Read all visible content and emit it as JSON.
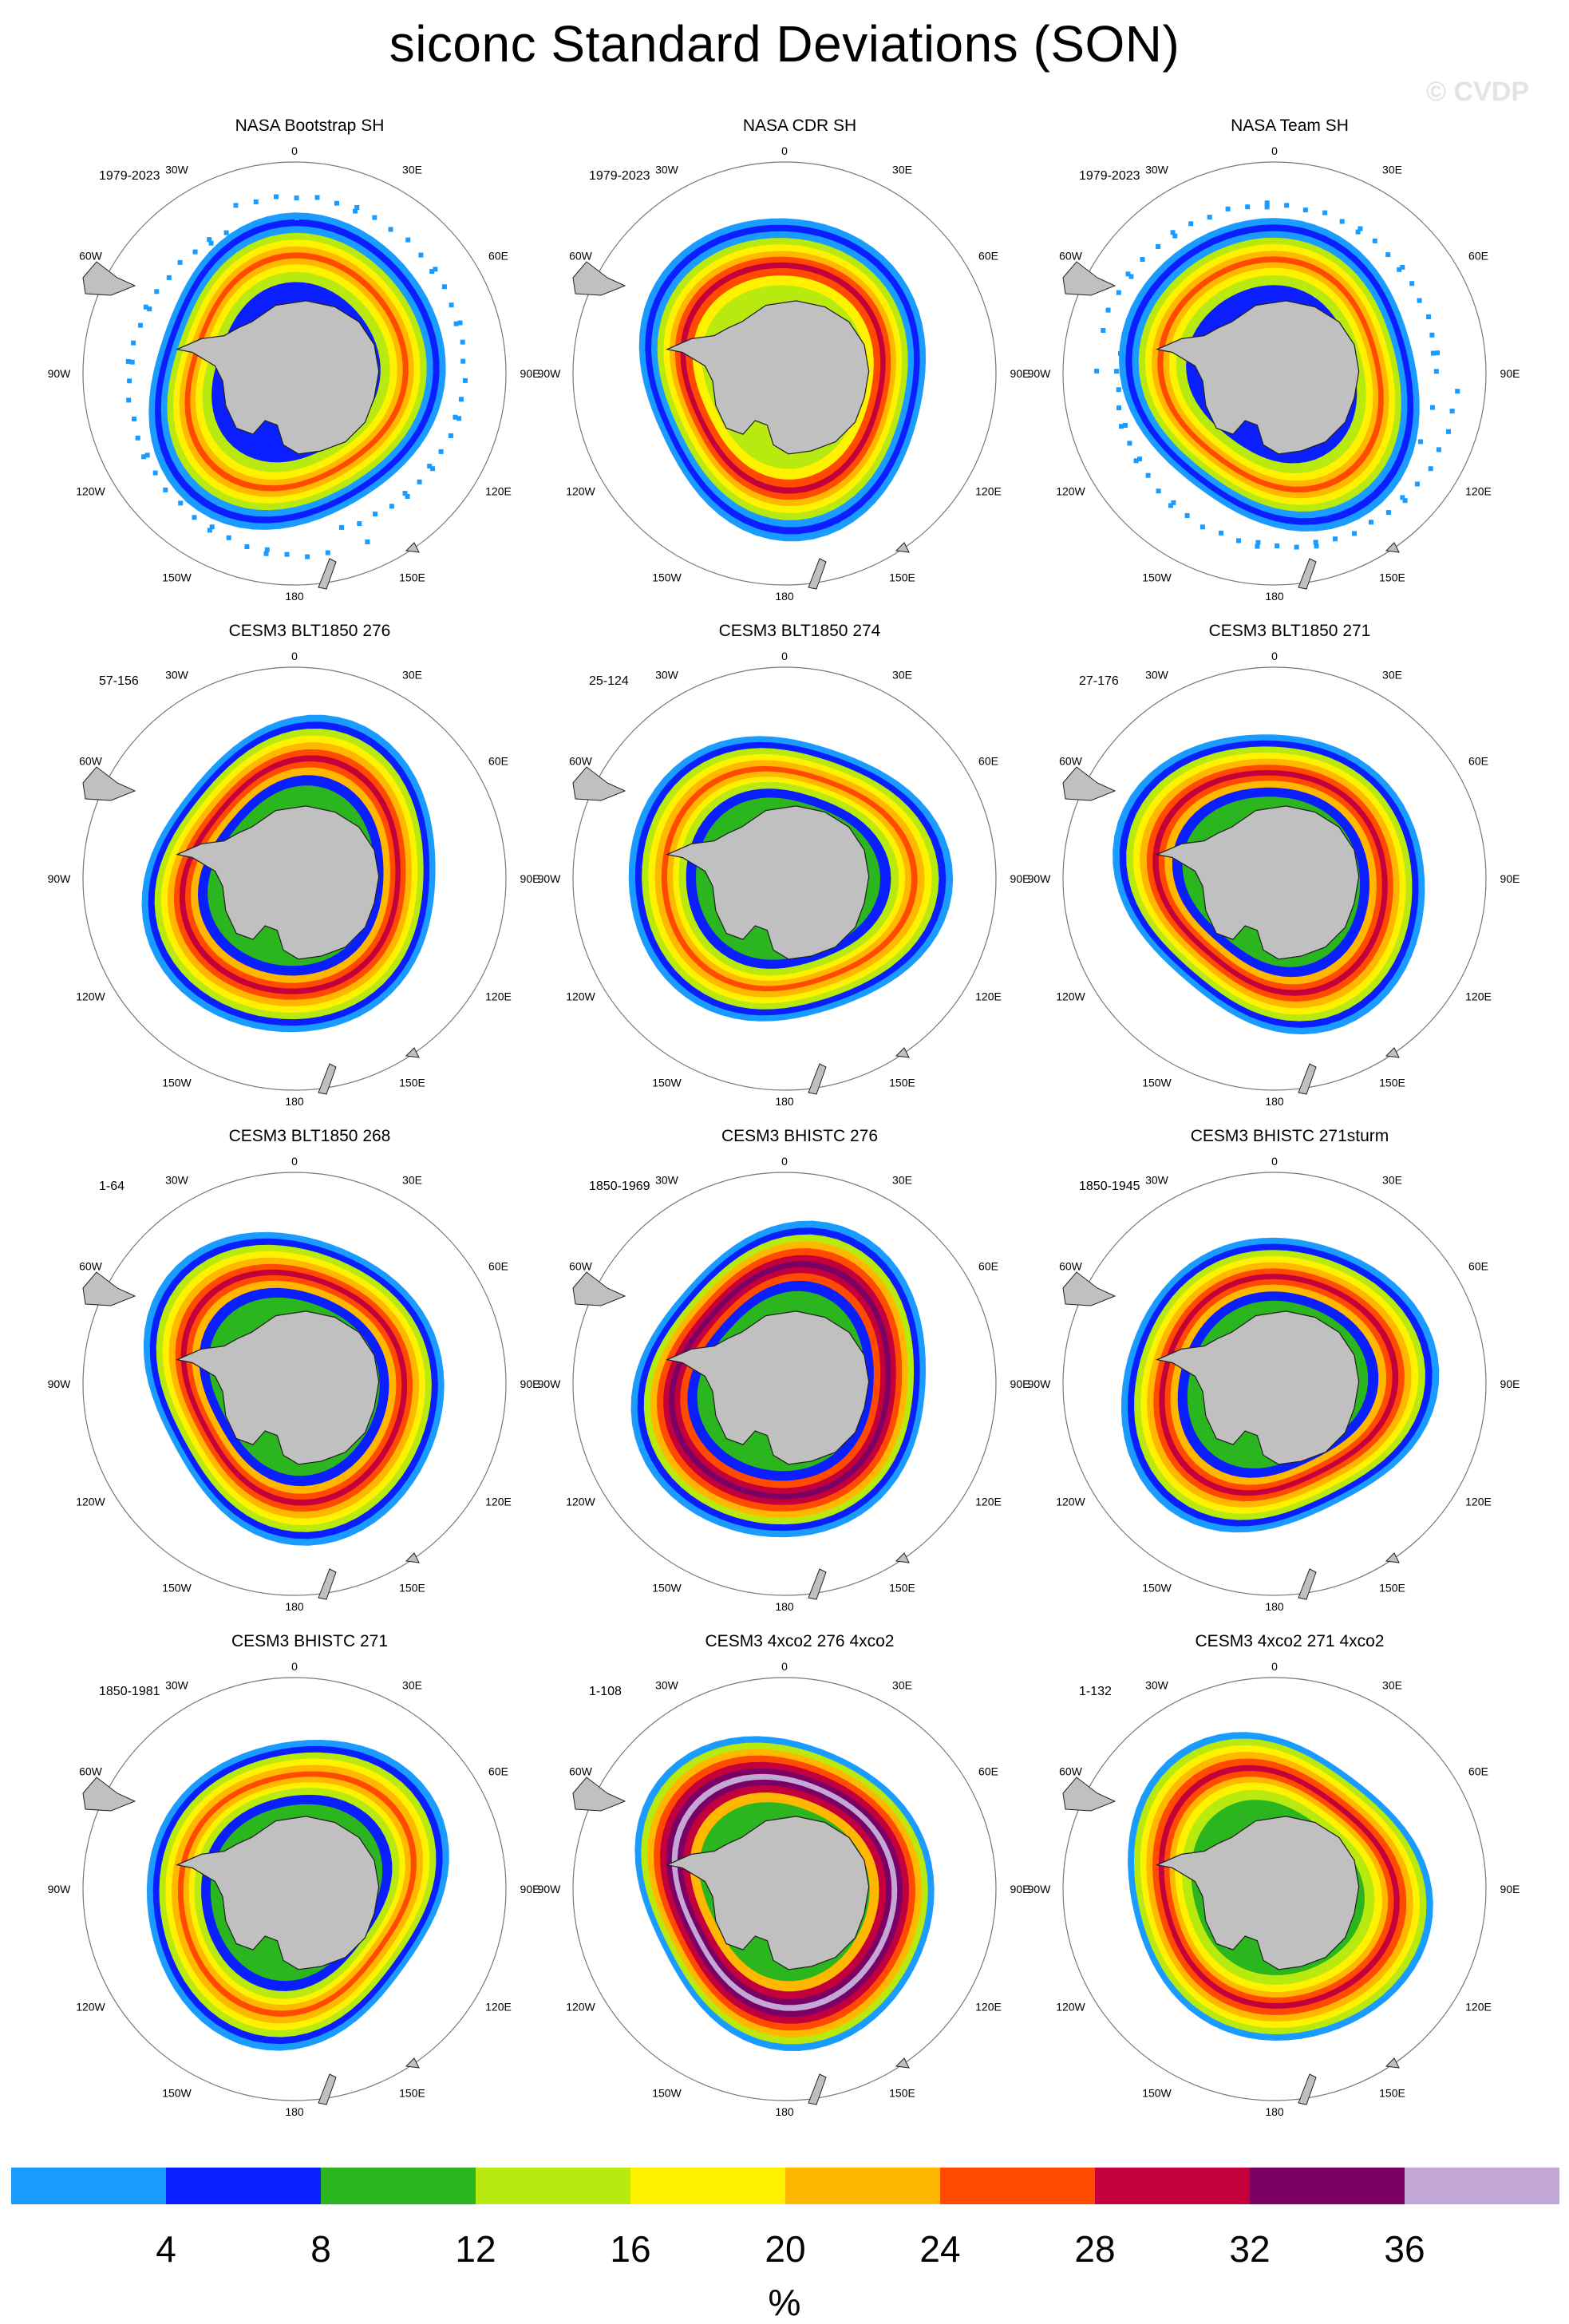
{
  "title": "siconc Standard Deviations (SON)",
  "watermark": "© CVDP",
  "lon_labels": [
    "0",
    "30E",
    "60E",
    "90E",
    "120E",
    "150E",
    "180",
    "150W",
    "120W",
    "90W",
    "60W",
    "30W"
  ],
  "panels": [
    {
      "title": "NASA Bootstrap SH",
      "years": "1979-2023",
      "peak": "30E",
      "variant": "obs-speckled"
    },
    {
      "title": "NASA CDR SH",
      "years": "1979-2023",
      "peak": "60E",
      "variant": "obs"
    },
    {
      "title": "NASA Team SH",
      "years": "1979-2023",
      "peak": "60E",
      "variant": "obs-speckled"
    },
    {
      "title": "CESM3 BLT1850 276",
      "years": "57-156",
      "peak": "120W",
      "variant": "model-red"
    },
    {
      "title": "CESM3 BLT1850 274",
      "years": "25-124",
      "peak": "60E",
      "variant": "model-orange"
    },
    {
      "title": "CESM3 BLT1850 271",
      "years": "27-176",
      "peak": "60W",
      "variant": "model-red"
    },
    {
      "title": "CESM3 BLT1850 268",
      "years": "1-64",
      "peak": "150W",
      "variant": "model-red"
    },
    {
      "title": "CESM3 BHISTC 276",
      "years": "1850-1969",
      "peak": "30E",
      "variant": "model-dark"
    },
    {
      "title": "CESM3 BHISTC 271sturm",
      "years": "1850-1945",
      "peak": "90W",
      "variant": "model-red"
    },
    {
      "title": "CESM3 BHISTC 271",
      "years": "1850-1981",
      "peak": "90W",
      "variant": "model-orange"
    },
    {
      "title": "CESM3 4xco2 276 4xco2",
      "years": "1-108",
      "peak": "0",
      "variant": "model-purple"
    },
    {
      "title": "CESM3 4xco2 271 4xco2",
      "years": "1-132",
      "peak": "30W",
      "variant": "model-warm"
    }
  ],
  "colorbar": {
    "unit": "%",
    "labels": [
      "4",
      "8",
      "12",
      "16",
      "20",
      "24",
      "28",
      "32",
      "36"
    ],
    "colors": [
      "#1a9bff",
      "#0a1eff",
      "#2bb51e",
      "#b9ea0f",
      "#fff200",
      "#ffb700",
      "#ff4a00",
      "#c4003c",
      "#7a0066",
      "#c3a7d6"
    ],
    "ice_land_color": "#c0c0c0"
  }
}
